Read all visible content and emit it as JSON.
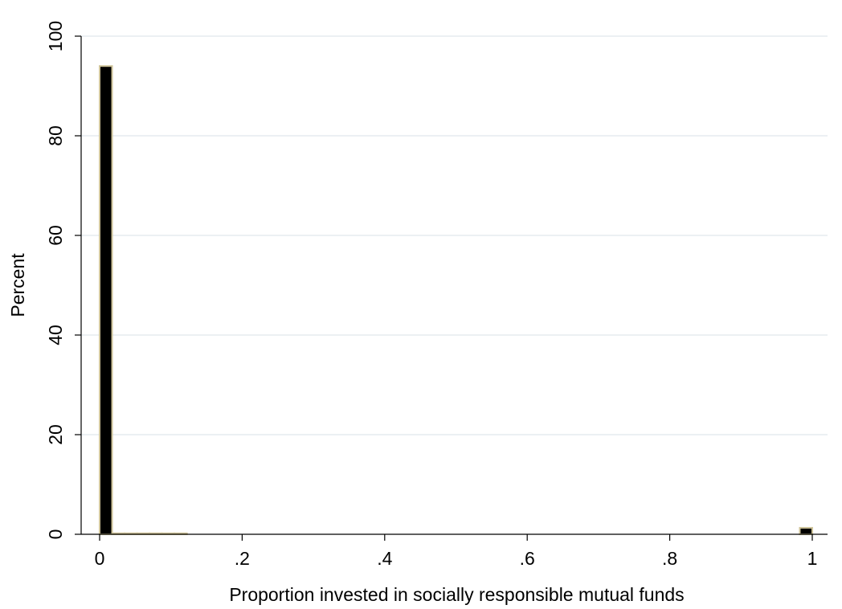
{
  "chart_data": {
    "type": "bar",
    "subtype": "histogram",
    "xlabel": "Proportion invested in socially responsible mutual funds",
    "ylabel": "Percent",
    "xlim": [
      0,
      1
    ],
    "ylim": [
      0,
      100
    ],
    "x_ticks": [
      0,
      0.2,
      0.4,
      0.6,
      0.8,
      1
    ],
    "x_tick_labels": [
      "0",
      ".2",
      ".4",
      ".6",
      ".8",
      "1"
    ],
    "y_ticks": [
      0,
      20,
      40,
      60,
      80,
      100
    ],
    "y_tick_labels": [
      "0",
      "20",
      "40",
      "60",
      "80",
      "100"
    ],
    "bin_width": 0.0175,
    "bins": [
      {
        "x_start": 0.0,
        "value": 94
      },
      {
        "x_start": 0.0175,
        "value": 0.2
      },
      {
        "x_start": 0.035,
        "value": 0.2
      },
      {
        "x_start": 0.0525,
        "value": 0.2
      },
      {
        "x_start": 0.07,
        "value": 0.2
      },
      {
        "x_start": 0.0875,
        "value": 0.1
      },
      {
        "x_start": 0.105,
        "value": 0.05
      },
      {
        "x_start": 0.9825,
        "value": 1.3
      }
    ],
    "grid": true,
    "bar_fill": "#000000",
    "bar_edge": "#cfc49a",
    "grid_color": "#e6ecef"
  }
}
